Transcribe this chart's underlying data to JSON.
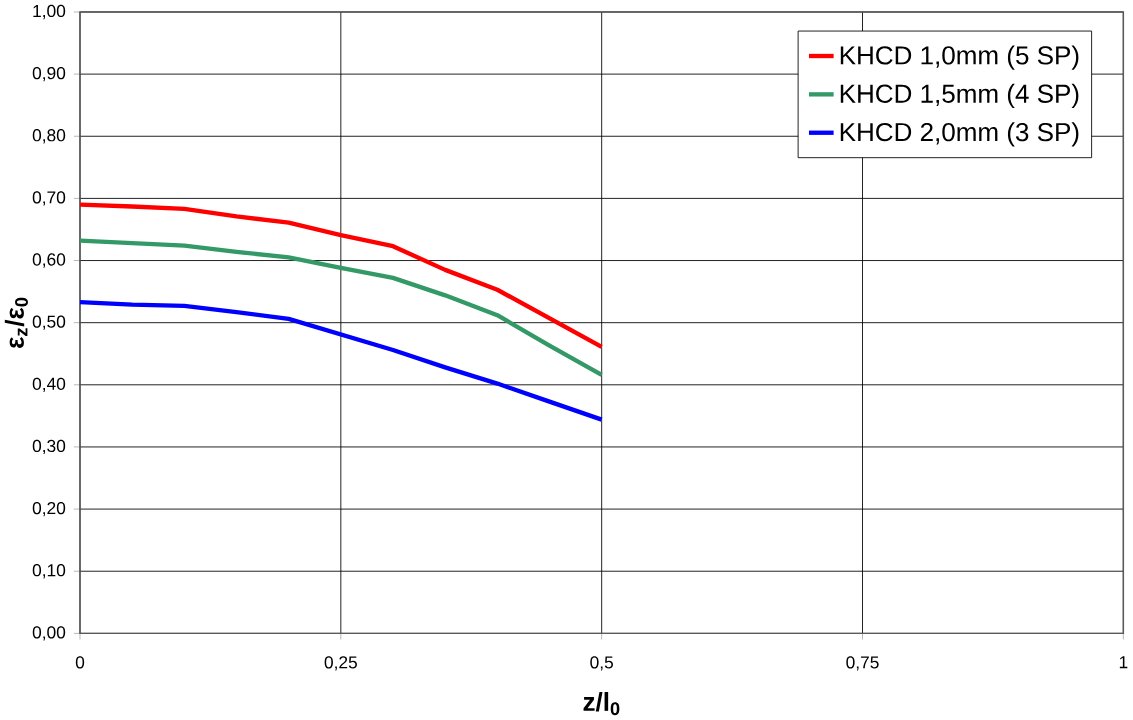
{
  "chart_data": {
    "type": "line",
    "xlabel": "z/l$_{0}$",
    "ylabel": "ε$_{z}$/ε$_{0}$",
    "x": [
      0,
      0.05,
      0.1,
      0.15,
      0.2,
      0.25,
      0.3,
      0.35,
      0.4,
      0.45,
      0.5
    ],
    "series": [
      {
        "name": "KHCD 1,0mm (5 SP)",
        "color": "#ff0000",
        "values": [
          0.69,
          0.687,
          0.683,
          0.671,
          0.661,
          0.641,
          0.623,
          0.585,
          0.553,
          0.507,
          0.461
        ]
      },
      {
        "name": "KHCD 1,5mm (4 SP)",
        "color": "#339966",
        "values": [
          0.632,
          0.628,
          0.624,
          0.614,
          0.605,
          0.588,
          0.572,
          0.544,
          0.512,
          0.463,
          0.416
        ]
      },
      {
        "name": "KHCD 2,0mm (3 SP)",
        "color": "#0000ff",
        "values": [
          0.533,
          0.529,
          0.527,
          0.517,
          0.506,
          0.481,
          0.456,
          0.428,
          0.402,
          0.373,
          0.344
        ]
      }
    ],
    "xlim": [
      0,
      1
    ],
    "xticks": [
      0,
      {
        "value": 0.25,
        "label": "0,25"
      },
      {
        "value": 0.5,
        "label": "0,5"
      },
      {
        "value": 0.75,
        "label": "0,75"
      },
      1
    ],
    "ylim": [
      0,
      1
    ],
    "yticks": [
      {
        "value": 0,
        "label": "0,00"
      },
      {
        "value": 0.1,
        "label": "0,10"
      },
      {
        "value": 0.2,
        "label": "0,20"
      },
      {
        "value": 0.3,
        "label": "0,30"
      },
      {
        "value": 0.4,
        "label": "0,40"
      },
      {
        "value": 0.5,
        "label": "0,50"
      },
      {
        "value": 0.6,
        "label": "0,60"
      },
      {
        "value": 0.7,
        "label": "0,70"
      },
      {
        "value": 0.8,
        "label": "0,80"
      },
      {
        "value": 0.9,
        "label": "0,90"
      },
      {
        "value": 1,
        "label": "1,00"
      }
    ],
    "grid": true,
    "legend": "top right",
    "marker": "none",
    "line_style": "solid"
  }
}
